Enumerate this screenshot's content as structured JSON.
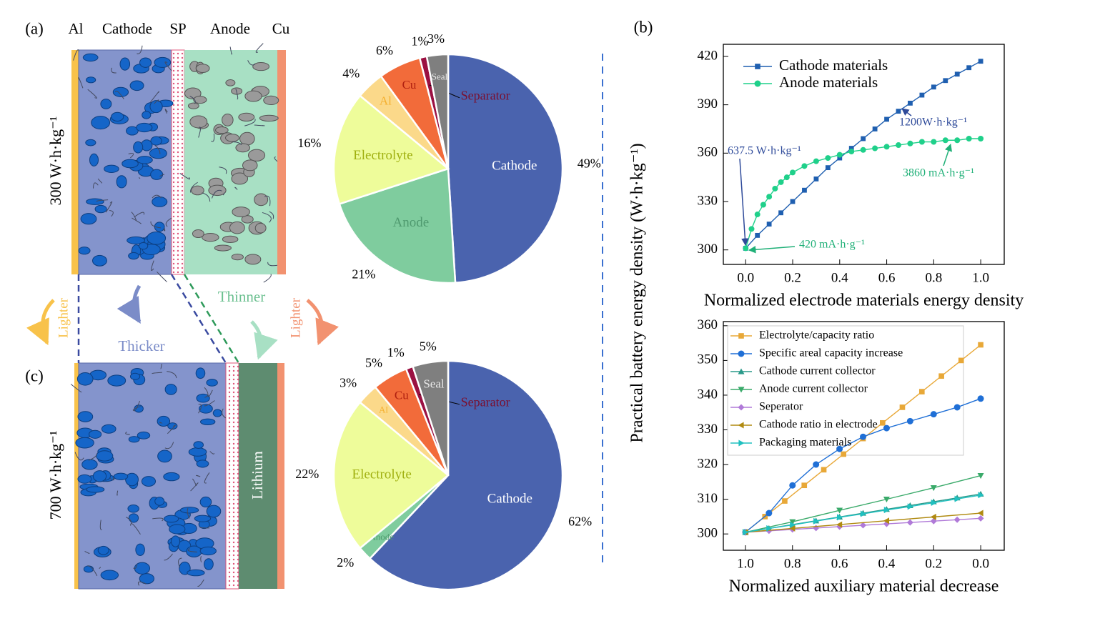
{
  "diagram": {
    "panel_a": "(a)",
    "panel_b": "(b)",
    "panel_c": "(c)",
    "layers": [
      "Al",
      "Cathode",
      "SP",
      "Anode",
      "Cu"
    ],
    "energy_a": "300 W·h·kg⁻¹",
    "energy_c": "700 W·h·kg⁻¹",
    "arrows": [
      "Lighter",
      "Thicker",
      "Thinner",
      "Lighter"
    ],
    "lithium": "Lithium"
  },
  "chart_data": [
    {
      "type": "pie",
      "categories": [
        "Cathode",
        "Anode",
        "Electrolyte",
        "Al",
        "Cu",
        "Separator",
        "Seal"
      ],
      "values": [
        49,
        21,
        16,
        4,
        6,
        1,
        3
      ],
      "value_labels": [
        "49%",
        "21%",
        "16%",
        "4%",
        "6%",
        "1%",
        "3%"
      ],
      "colors": [
        "#4a63ae",
        "#7fcc9e",
        "#eefc9a",
        "#fbd98a",
        "#f26b3a",
        "#9b1142",
        "#7f7f7f"
      ],
      "label_colors": [
        "#ffffff",
        "#4f9a6f",
        "#a0b010",
        "#f5b030",
        "#b02010",
        "#7a1030",
        "#e8e8e8"
      ]
    },
    {
      "type": "pie",
      "categories": [
        "Cathode",
        "Anode",
        "Electrolyte",
        "Al",
        "Cu",
        "Separator",
        "Seal"
      ],
      "values": [
        62,
        2,
        22,
        3,
        5,
        1,
        5
      ],
      "value_labels": [
        "62%",
        "2%",
        "22%",
        "3%",
        "5%",
        "1%",
        "5%"
      ],
      "colors": [
        "#4a63ae",
        "#7fcc9e",
        "#eefc9a",
        "#fbd98a",
        "#f26b3a",
        "#9b1142",
        "#7f7f7f"
      ],
      "label_colors": [
        "#ffffff",
        "#4f9a6f",
        "#a0b010",
        "#f5b030",
        "#b02010",
        "#7a1030",
        "#e8e8e8"
      ]
    },
    {
      "type": "line",
      "xlabel": "Normalized electrode materials energy density",
      "ylabel": "Practical battery energy density (W·h·kg⁻¹)",
      "xlim": [
        -0.095,
        1.1
      ],
      "xticks": [
        {
          "value": 0,
          "label": "0.0"
        },
        0.2,
        0.4,
        0.6,
        0.8,
        {
          "value": 1,
          "label": "1.0"
        }
      ],
      "ylim": [
        291,
        427.5
      ],
      "yticks": [
        300,
        330,
        360,
        390,
        420
      ],
      "legend": "upper left",
      "series": [
        {
          "name": "Cathode materials",
          "color": "#1f5fb0",
          "marker": "square",
          "x": [
            0,
            0.05,
            0.1,
            0.15,
            0.2,
            0.25,
            0.3,
            0.35,
            0.4,
            0.45,
            0.5,
            0.55,
            0.6,
            0.65,
            0.7,
            0.75,
            0.8,
            0.85,
            0.9,
            0.95,
            1
          ],
          "values": [
            301,
            309,
            316,
            323,
            330,
            337,
            344,
            351,
            357,
            363,
            369,
            375,
            381,
            386,
            391,
            396,
            401,
            405,
            409,
            413,
            417
          ]
        },
        {
          "name": "Anode materials",
          "color": "#1fd08a",
          "marker": "circle",
          "x": [
            0,
            0.025,
            0.05,
            0.075,
            0.1,
            0.125,
            0.15,
            0.175,
            0.2,
            0.25,
            0.3,
            0.35,
            0.4,
            0.45,
            0.5,
            0.55,
            0.6,
            0.65,
            0.7,
            0.75,
            0.8,
            0.85,
            0.9,
            0.95,
            1
          ],
          "values": [
            301,
            313,
            322,
            328,
            333,
            338,
            342,
            345,
            348,
            352,
            355,
            357,
            359,
            361,
            362,
            363,
            364,
            365,
            366,
            367,
            367,
            368,
            368,
            369,
            369
          ]
        }
      ],
      "annotations": [
        "1200W·h·kg⁻¹",
        "637.5 W·h·kg⁻¹",
        "3860 mA·h·g⁻¹",
        "420 mA·h·g⁻¹"
      ]
    },
    {
      "type": "line",
      "xlabel": "Normalized auxiliary material decrease",
      "xlim": [
        1.094,
        -0.1
      ],
      "xticks": [
        {
          "value": 1,
          "label": "1.0"
        },
        0.8,
        0.6,
        0.4,
        0.2,
        {
          "value": 0,
          "label": "0.0"
        }
      ],
      "ylim": [
        295.3,
        361.2
      ],
      "yticks": [
        300,
        310,
        320,
        330,
        340,
        350,
        360
      ],
      "legend": "upper left",
      "legend_frame": true,
      "series": [
        {
          "name": "Electrolyte/capacity ratio",
          "color": "#e8a838",
          "marker": "square",
          "x": [
            1,
            0.917,
            0.833,
            0.75,
            0.667,
            0.583,
            0.5,
            0.417,
            0.333,
            0.25,
            0.167,
            0.083,
            0
          ],
          "values": [
            300.5,
            305,
            309.5,
            314,
            318.5,
            323,
            327.5,
            332,
            336.5,
            341,
            345.5,
            350,
            354.5
          ]
        },
        {
          "name": "Specific areal capacity increase",
          "color": "#1f6fd6",
          "marker": "circle",
          "x": [
            1,
            0.9,
            0.8,
            0.7,
            0.6,
            0.5,
            0.4,
            0.3,
            0.2,
            0.1,
            0
          ],
          "values": [
            300.5,
            306,
            314,
            320,
            324.5,
            328,
            330.5,
            332.5,
            334.5,
            336.5,
            339
          ]
        },
        {
          "name": "Cathode current collector",
          "color": "#2a9a8a",
          "marker": "up",
          "x": [
            1,
            0.9,
            0.8,
            0.7,
            0.6,
            0.5,
            0.4,
            0.3,
            0.2,
            0.1,
            0
          ],
          "values": [
            300.5,
            301.6,
            302.7,
            303.8,
            304.9,
            306,
            307.1,
            308.2,
            309.3,
            310.4,
            311.5
          ]
        },
        {
          "name": "Anode current collector",
          "color": "#3aaa6a",
          "marker": "down",
          "x": [
            1,
            0.8,
            0.6,
            0.4,
            0.2,
            0
          ],
          "values": [
            300.5,
            303.5,
            306.8,
            310,
            313.3,
            316.8
          ]
        },
        {
          "name": "Seperator",
          "color": "#b07ad8",
          "marker": "diamond",
          "x": [
            1,
            0.9,
            0.8,
            0.7,
            0.6,
            0.5,
            0.4,
            0.3,
            0.2,
            0.1,
            0
          ],
          "values": [
            300.5,
            300.9,
            301.3,
            301.7,
            302.1,
            302.5,
            302.9,
            303.3,
            303.7,
            304.1,
            304.5
          ]
        },
        {
          "name": "Cathode ratio in electrode",
          "color": "#b08a10",
          "marker": "left",
          "x": [
            1,
            0.8,
            0.6,
            0.4,
            0.2,
            0
          ],
          "values": [
            300.5,
            301.6,
            302.7,
            303.8,
            304.9,
            306
          ]
        },
        {
          "name": "Packaging materials",
          "color": "#20c0c0",
          "marker": "right",
          "x": [
            1,
            0.9,
            0.8,
            0.7,
            0.6,
            0.5,
            0.4,
            0.3,
            0.2,
            0.1,
            0
          ],
          "values": [
            300.5,
            301.6,
            302.6,
            303.7,
            304.8,
            305.8,
            306.9,
            307.9,
            309,
            310.1,
            311.2
          ]
        }
      ]
    }
  ]
}
